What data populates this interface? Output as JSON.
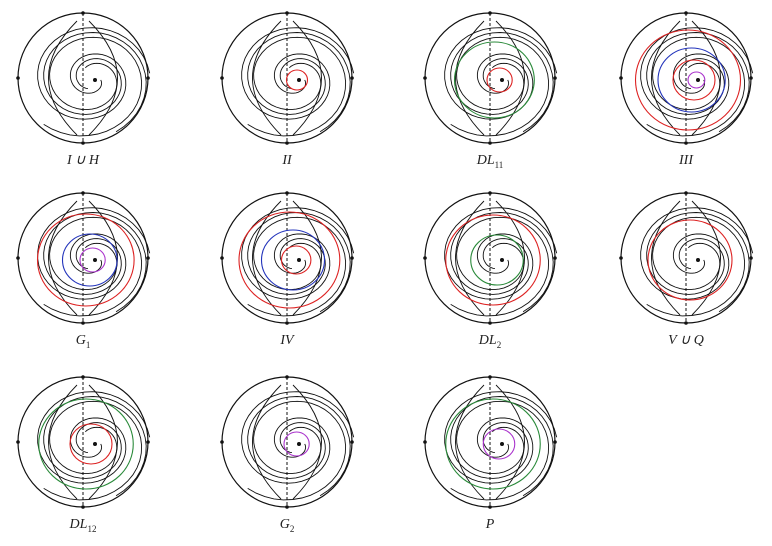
{
  "panels": [
    {
      "label": "I ∪ H"
    },
    {
      "label": "II"
    },
    {
      "label": "DL",
      "sub": "11"
    },
    {
      "label": "III"
    },
    {
      "label": "G",
      "sub": "1"
    },
    {
      "label": "IV"
    },
    {
      "label": "DL",
      "sub": "2"
    },
    {
      "label": "V ∪ Q"
    },
    {
      "label": "DL",
      "sub": "12"
    },
    {
      "label": "G",
      "sub": "2"
    },
    {
      "label": "P"
    }
  ]
}
